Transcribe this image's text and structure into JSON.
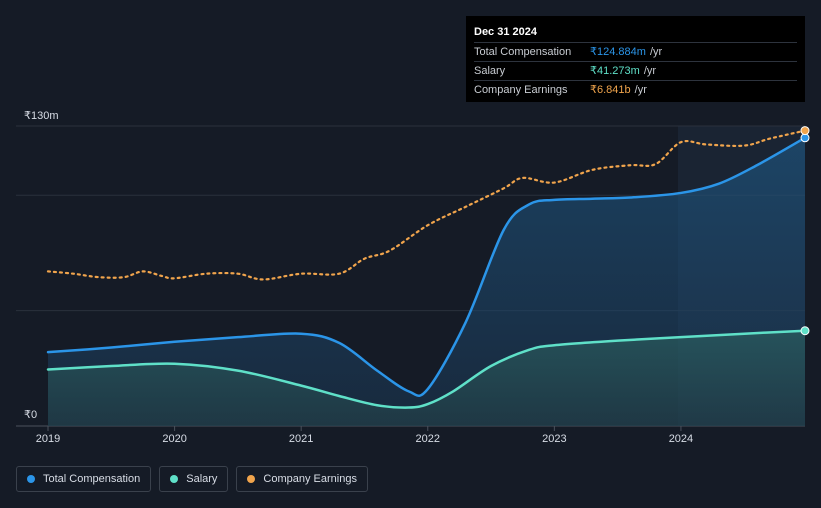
{
  "chart_data": {
    "type": "line",
    "xlim": [
      2019,
      2024.98
    ],
    "ylim": [
      0,
      130
    ],
    "x_ticks": [
      "2019",
      "2020",
      "2021",
      "2022",
      "2023",
      "2024"
    ],
    "y_tick_labels": {
      "top": "₹130m",
      "bottom": "₹0"
    },
    "series": [
      {
        "name": "Total Compensation",
        "color": "#2b95e8",
        "x": [
          2019,
          2019.5,
          2020,
          2020.5,
          2021,
          2021.3,
          2021.6,
          2021.85,
          2022,
          2022.3,
          2022.6,
          2022.8,
          2023,
          2023.3,
          2023.6,
          2024,
          2024.3,
          2024.6,
          2024.98
        ],
        "values": [
          32,
          34,
          36.5,
          38.5,
          40,
          36,
          24,
          15,
          16,
          45,
          85,
          96,
          98,
          98.5,
          99,
          101,
          105,
          113,
          124.884
        ]
      },
      {
        "name": "Salary",
        "color": "#5fe0c8",
        "x": [
          2019,
          2019.5,
          2020,
          2020.5,
          2021,
          2021.3,
          2021.6,
          2021.85,
          2022,
          2022.2,
          2022.5,
          2022.8,
          2023,
          2023.5,
          2024,
          2024.5,
          2024.98
        ],
        "values": [
          24.5,
          26,
          27,
          24,
          17.5,
          13,
          9,
          8,
          9.5,
          15,
          26,
          33,
          35,
          37,
          38.5,
          40,
          41.273
        ]
      },
      {
        "name": "Company Earnings",
        "color": "#f0a44c",
        "x": [
          2019,
          2019.2,
          2019.4,
          2019.6,
          2019.75,
          2019.9,
          2020,
          2020.25,
          2020.5,
          2020.7,
          2021,
          2021.3,
          2021.5,
          2021.7,
          2022,
          2022.3,
          2022.6,
          2022.75,
          2023,
          2023.3,
          2023.6,
          2023.8,
          2024,
          2024.2,
          2024.5,
          2024.7,
          2024.98
        ],
        "values": [
          67,
          66,
          64.5,
          64.5,
          67,
          65,
          64,
          66,
          66,
          63.5,
          66,
          66,
          72.5,
          76,
          87,
          95,
          103,
          107.5,
          105.5,
          111,
          113,
          113.5,
          123,
          122,
          121.5,
          124.5,
          128
        ]
      }
    ],
    "legend_position": "bottom-left",
    "grid": true
  },
  "tooltip": {
    "date": "Dec 31 2024",
    "rows": [
      {
        "label": "Total Compensation",
        "value": "₹124.884m",
        "unit": "/yr",
        "color": "#2b95e8"
      },
      {
        "label": "Salary",
        "value": "₹41.273m",
        "unit": "/yr",
        "color": "#5fe0c8"
      },
      {
        "label": "Company Earnings",
        "value": "₹6.841b",
        "unit": "/yr",
        "color": "#f0a44c"
      }
    ]
  },
  "legend": [
    {
      "label": "Total Compensation",
      "color": "#2b95e8"
    },
    {
      "label": "Salary",
      "color": "#5fe0c8"
    },
    {
      "label": "Company Earnings",
      "color": "#f0a44c"
    }
  ]
}
